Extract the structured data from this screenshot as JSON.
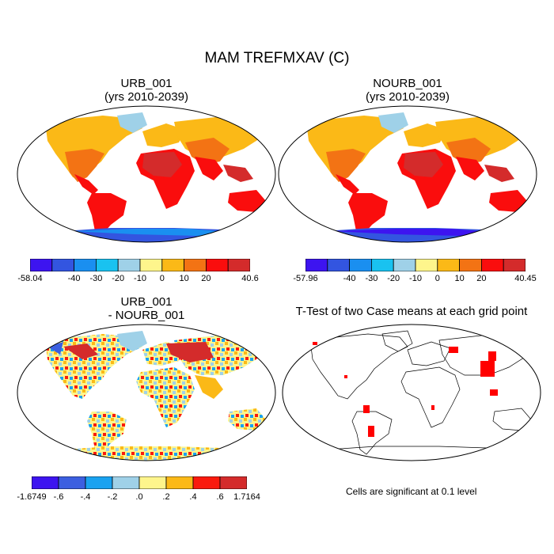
{
  "title": "MAM TREFMXAV (C)",
  "panels": {
    "top_left": {
      "title_line1": "URB_001",
      "title_line2": "(yrs 2010-2039)"
    },
    "top_right": {
      "title_line1": "NOURB_001",
      "title_line2": "(yrs 2010-2039)"
    },
    "bottom_left": {
      "title_line1": "URB_001",
      "title_line2": "- NOURB_001"
    },
    "bottom_right": {
      "title_line1": "T-Test of two Case means at each grid point",
      "note": "Cells are significant at 0.1 level"
    }
  },
  "colorbars": {
    "top_left": {
      "colors": [
        "#3d14f0",
        "#3355e0",
        "#1a8ff0",
        "#19c2f0",
        "#9fd1e8",
        "#fef58c",
        "#fbb917",
        "#f37314",
        "#fa0d0d",
        "#d42b2b"
      ],
      "labels": [
        "-58.04",
        "-40",
        "-30",
        "-20",
        "-10",
        "0",
        "10",
        "20",
        "40.6"
      ]
    },
    "top_right": {
      "colors": [
        "#3d14f0",
        "#3355e0",
        "#1a8ff0",
        "#19c2f0",
        "#9fd1e8",
        "#fef58c",
        "#fbb917",
        "#f37314",
        "#fa0d0d",
        "#d42b2b"
      ],
      "labels": [
        "-57.96",
        "-40",
        "-30",
        "-20",
        "-10",
        "0",
        "10",
        "20",
        "40.45"
      ]
    },
    "bottom_left": {
      "colors": [
        "#3d14f0",
        "#3c5fe0",
        "#1aa2f0",
        "#9fd1e8",
        "#fef58c",
        "#fbb917",
        "#fa1a0d",
        "#d42b2b"
      ],
      "labels": [
        "-1.6749",
        "-.6",
        "-.4",
        "-.2",
        ".0",
        ".2",
        ".4",
        ".6",
        "1.7164"
      ]
    }
  },
  "colors": {
    "land_hot": "#d42b2b",
    "land_warm": "#fa0d0d",
    "land_mild": "#f37314",
    "land_cool": "#fbb917",
    "polar": "#3355e0",
    "significant": "#ff0000"
  }
}
